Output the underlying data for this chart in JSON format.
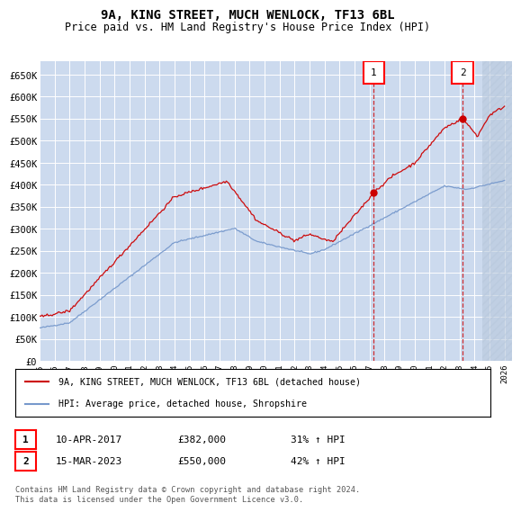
{
  "title": "9A, KING STREET, MUCH WENLOCK, TF13 6BL",
  "subtitle": "Price paid vs. HM Land Registry's House Price Index (HPI)",
  "yticks": [
    0,
    50000,
    100000,
    150000,
    200000,
    250000,
    300000,
    350000,
    400000,
    450000,
    500000,
    550000,
    600000,
    650000
  ],
  "ytick_labels": [
    "£0",
    "£50K",
    "£100K",
    "£150K",
    "£200K",
    "£250K",
    "£300K",
    "£350K",
    "£400K",
    "£450K",
    "£500K",
    "£550K",
    "£600K",
    "£650K"
  ],
  "ylim": [
    0,
    680000
  ],
  "xlim_start": 1995.0,
  "xlim_end": 2026.5,
  "sale1_x": 2017.27,
  "sale1_y": 382000,
  "sale2_x": 2023.2,
  "sale2_y": 550000,
  "hpi_color": "#7799cc",
  "price_color": "#cc0000",
  "legend1": "9A, KING STREET, MUCH WENLOCK, TF13 6BL (detached house)",
  "legend2": "HPI: Average price, detached house, Shropshire",
  "annotation1_date": "10-APR-2017",
  "annotation1_price": "£382,000",
  "annotation1_hpi": "31% ↑ HPI",
  "annotation2_date": "15-MAR-2023",
  "annotation2_price": "£550,000",
  "annotation2_hpi": "42% ↑ HPI",
  "footer": "Contains HM Land Registry data © Crown copyright and database right 2024.\nThis data is licensed under the Open Government Licence v3.0.",
  "background_color": "#ccdaee",
  "hatch_color": "#b8c8dc"
}
